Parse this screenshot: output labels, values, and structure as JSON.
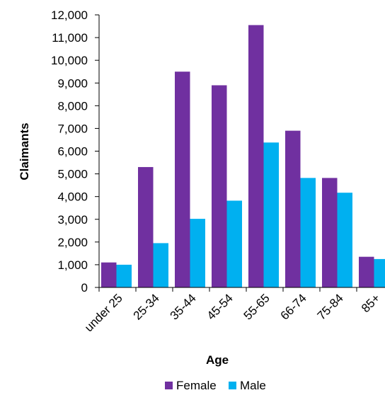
{
  "chart_data": {
    "type": "bar",
    "xlabel": "Age",
    "ylabel": "Claimants",
    "categories": [
      "under 25",
      "25-34",
      "35-44",
      "45-54",
      "55-65",
      "66-74",
      "75-84",
      "85+"
    ],
    "series": [
      {
        "name": "Female",
        "color": "#7030a0",
        "values": [
          1100,
          5300,
          9500,
          8900,
          11550,
          6900,
          4820,
          1350
        ]
      },
      {
        "name": "Male",
        "color": "#00b0f0",
        "values": [
          1000,
          1950,
          3020,
          3820,
          6380,
          4820,
          4170,
          1250
        ]
      }
    ],
    "ylim": [
      0,
      12000
    ],
    "yticks": [
      0,
      1000,
      2000,
      3000,
      4000,
      5000,
      6000,
      7000,
      8000,
      9000,
      10000,
      11000,
      12000
    ],
    "ytick_labels": [
      "0",
      "1,000",
      "2,000",
      "3,000",
      "4,000",
      "5,000",
      "6,000",
      "7,000",
      "8,000",
      "9,000",
      "10,000",
      "11,000",
      "12,000"
    ],
    "grid": false,
    "legend": "bottom"
  }
}
